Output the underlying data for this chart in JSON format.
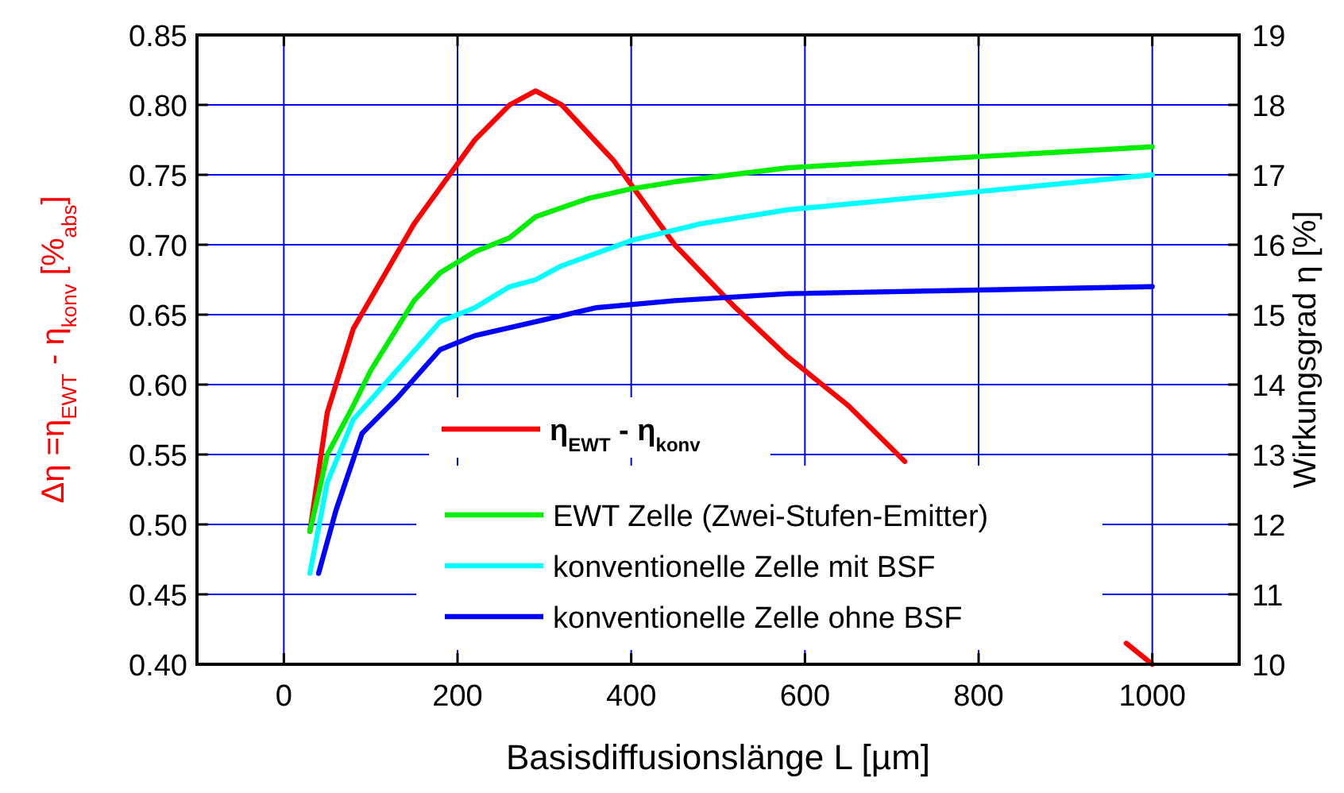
{
  "chart_data": {
    "type": "line",
    "xlabel": "Basisdiffusionslänge L  [µm]",
    "ylabel": "Δη =η$_{EWT}$ - η$_{konv}$ [%$_{abs}$]",
    "y2label": "Wirkungsgrad η [%]",
    "xlim": [
      -100,
      1100
    ],
    "xticks": [
      0,
      200,
      400,
      600,
      800,
      1000
    ],
    "ylim": [
      0.4,
      0.85
    ],
    "yticks": [
      {
        "value": 0.4,
        "label": "0.40"
      },
      {
        "value": 0.45,
        "label": "0.45"
      },
      {
        "value": 0.5,
        "label": "0.50"
      },
      {
        "value": 0.55,
        "label": "0.55"
      },
      {
        "value": 0.6,
        "label": "0.60"
      },
      {
        "value": 0.65,
        "label": "0.65"
      },
      {
        "value": 0.7,
        "label": "0.70"
      },
      {
        "value": 0.75,
        "label": "0.75"
      },
      {
        "value": 0.8,
        "label": "0.80"
      },
      {
        "value": 0.85,
        "label": "0.85"
      }
    ],
    "y2lim": [
      10,
      19
    ],
    "y2ticks": [
      10,
      11,
      12,
      13,
      14,
      15,
      16,
      17,
      18,
      19
    ],
    "grid": true,
    "legend": "bottom",
    "line_style": "solid",
    "marker": "none",
    "series": [
      {
        "name": "η$_{EWT}$ - η$_{konv}$",
        "color": "#ff0000",
        "x": [
          30,
          50,
          80,
          150,
          220,
          260,
          290,
          320,
          380,
          450,
          520,
          580,
          650,
          715,
          850,
          970,
          1000
        ],
        "values": [
          0.495,
          0.58,
          0.64,
          0.715,
          0.775,
          0.8,
          0.81,
          0.8,
          0.76,
          0.7,
          0.655,
          0.62,
          0.585,
          0.545,
          null,
          0.415,
          0.4
        ]
      },
      {
        "name": "EWT Zelle (Zwei-Stufen-Emitter)",
        "color": "#00ee00",
        "axis": "y2",
        "x": [
          30,
          50,
          80,
          100,
          150,
          180,
          220,
          260,
          290,
          350,
          400,
          450,
          580,
          800,
          1000
        ],
        "values": [
          11.9,
          13.0,
          13.7,
          14.2,
          15.2,
          15.6,
          15.9,
          16.1,
          16.4,
          16.66,
          16.8,
          16.9,
          17.1,
          17.26,
          17.4
        ]
      },
      {
        "name": "konventionelle Zelle mit BSF",
        "color": "#00ffff",
        "axis": "y2",
        "x": [
          30,
          50,
          80,
          130,
          180,
          220,
          260,
          290,
          320,
          400,
          480,
          580,
          800,
          1000
        ],
        "values": [
          11.3,
          12.6,
          13.5,
          14.2,
          14.9,
          15.1,
          15.4,
          15.5,
          15.7,
          16.06,
          16.3,
          16.5,
          16.76,
          17.0
        ]
      },
      {
        "name": "konventionelle Zelle ohne BSF",
        "color": "#0000ff",
        "axis": "y2",
        "x": [
          40,
          60,
          90,
          130,
          180,
          220,
          290,
          360,
          450,
          580,
          1000
        ],
        "values": [
          11.3,
          12.2,
          13.3,
          13.8,
          14.5,
          14.7,
          14.9,
          15.1,
          15.2,
          15.3,
          15.4
        ]
      }
    ]
  }
}
